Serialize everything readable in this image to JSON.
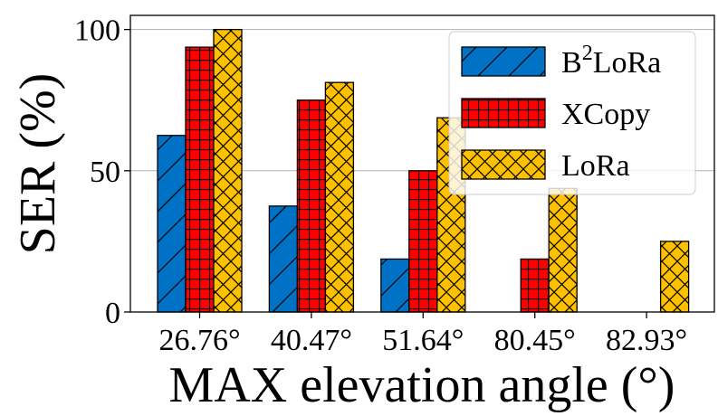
{
  "chart_data": {
    "type": "bar",
    "title": "",
    "xlabel": "MAX elevation angle (°)",
    "ylabel": "SER (%)",
    "categories": [
      "26.76°",
      "40.47°",
      "51.64°",
      "80.45°",
      "82.93°"
    ],
    "ylim": [
      0,
      100
    ],
    "yticks": [
      0,
      50,
      100
    ],
    "grid": "horizontal",
    "legend_position": "top-right",
    "series": [
      {
        "name": "B2LoRa",
        "legend_base": "B",
        "legend_sup": "2",
        "legend_rest": "LoRa",
        "values": [
          62.5,
          37.5,
          18.75,
          0,
          0
        ],
        "color": "#0072C6",
        "hatch": "diagonal"
      },
      {
        "name": "XCopy",
        "values": [
          93.75,
          75,
          50,
          18.75,
          0
        ],
        "color": "#FF0000",
        "hatch": "grid"
      },
      {
        "name": "LoRa",
        "values": [
          100,
          81.25,
          68.75,
          43.75,
          25
        ],
        "color": "#FFC000",
        "hatch": "cross"
      }
    ]
  }
}
